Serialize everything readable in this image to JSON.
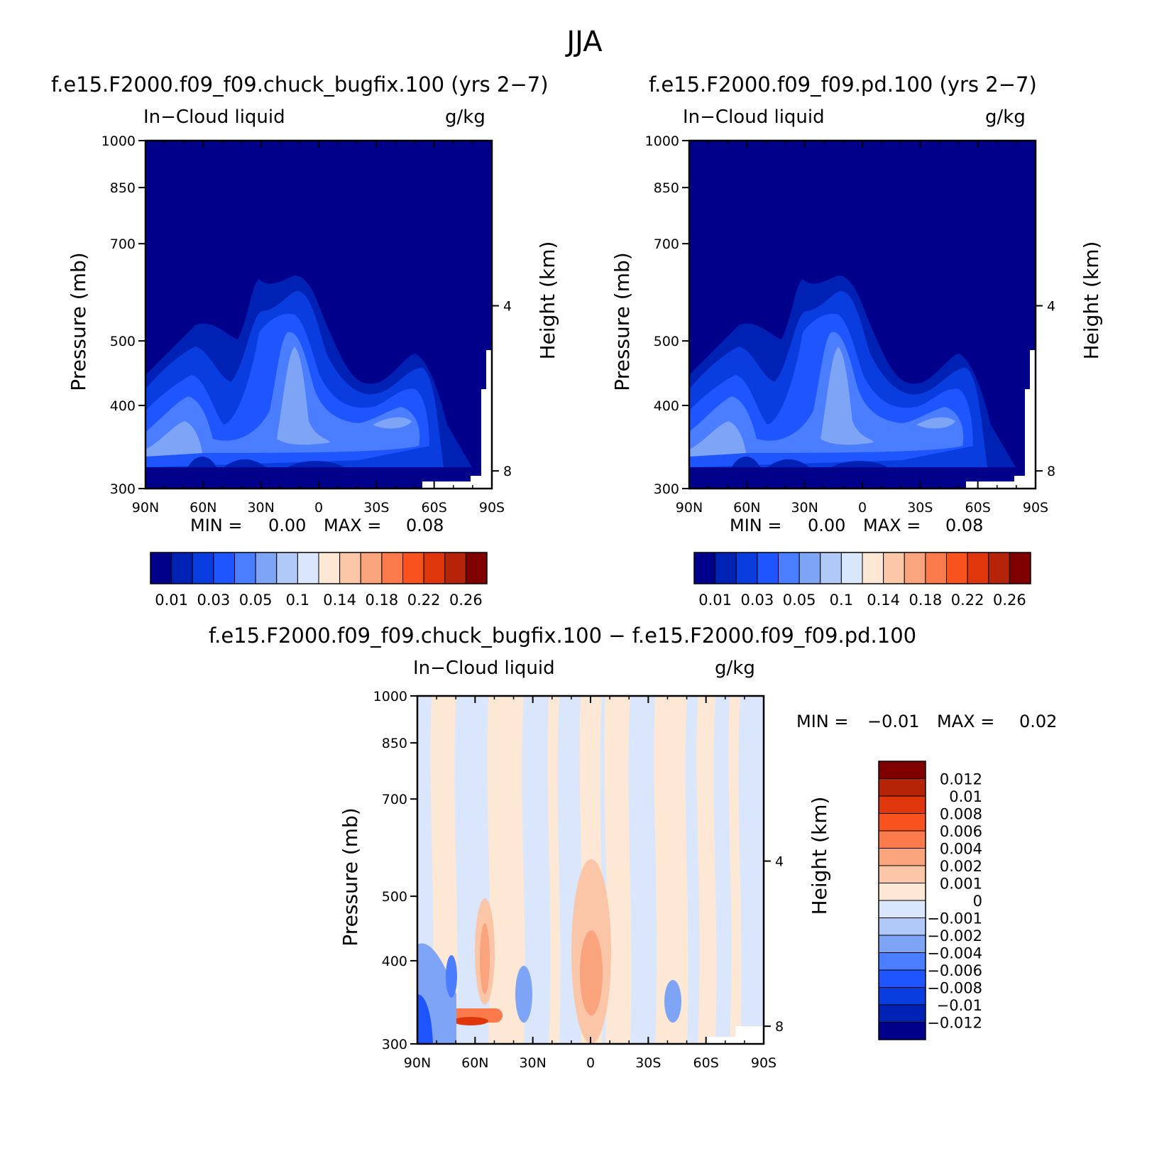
{
  "main_title": "JJA",
  "panels": [
    {
      "title": "f.e15.F2000.f09_f09.chuck_bugfix.100 (yrs 2−7)",
      "var_label": "In−Cloud liquid",
      "units": "g/kg",
      "min_label": "MIN =",
      "min_value": "0.00",
      "max_label": "MAX =",
      "max_value": "0.08"
    },
    {
      "title": "f.e15.F2000.f09_f09.pd.100 (yrs 2−7)",
      "var_label": "In−Cloud liquid",
      "units": "g/kg",
      "min_label": "MIN =",
      "min_value": "0.00",
      "max_label": "MAX =",
      "max_value": "0.08"
    },
    {
      "title": "f.e15.F2000.f09_f09.chuck_bugfix.100 − f.e15.F2000.f09_f09.pd.100",
      "var_label": "In−Cloud liquid",
      "units": "g/kg",
      "min_label": "MIN =",
      "min_value": "−0.01",
      "max_label": "MAX =",
      "max_value": "0.02"
    }
  ],
  "chart_data": [
    {
      "type": "heatmap",
      "title": "f.e15.F2000.f09_f09.chuck_bugfix.100 (yrs 2−7)",
      "xlabel": "",
      "ylabel": "Pressure (mb)",
      "y2label": "Height (km)",
      "x_ticks": [
        "90N",
        "60N",
        "30N",
        "0",
        "30S",
        "60S",
        "90S"
      ],
      "y_ticks": [
        "300",
        "400",
        "500",
        "700",
        "850",
        "1000"
      ],
      "y2_ticks": [
        "8",
        "4"
      ],
      "y_scale": "log",
      "levels": [
        "0.01",
        "0.03",
        "0.05",
        "0.1",
        "0.14",
        "0.18",
        "0.22",
        "0.26"
      ]
    },
    {
      "type": "heatmap",
      "title": "f.e15.F2000.f09_f09.pd.100 (yrs 2−7)",
      "xlabel": "",
      "ylabel": "Pressure (mb)",
      "y2label": "Height (km)",
      "x_ticks": [
        "90N",
        "60N",
        "30N",
        "0",
        "30S",
        "60S",
        "90S"
      ],
      "y_ticks": [
        "300",
        "400",
        "500",
        "700",
        "850",
        "1000"
      ],
      "y2_ticks": [
        "8",
        "4"
      ],
      "y_scale": "log",
      "levels": [
        "0.01",
        "0.03",
        "0.05",
        "0.1",
        "0.14",
        "0.18",
        "0.22",
        "0.26"
      ]
    },
    {
      "type": "heatmap",
      "title": "f.e15.F2000.f09_f09.chuck_bugfix.100 − f.e15.F2000.f09_f09.pd.100",
      "xlabel": "",
      "ylabel": "Pressure (mb)",
      "y2label": "Height (km)",
      "x_ticks": [
        "90N",
        "60N",
        "30N",
        "0",
        "30S",
        "60S",
        "90S"
      ],
      "y_ticks": [
        "300",
        "400",
        "500",
        "700",
        "850",
        "1000"
      ],
      "y2_ticks": [
        "8",
        "4"
      ],
      "y_scale": "log",
      "levels": [
        "0.012",
        "0.01",
        "0.008",
        "0.006",
        "0.004",
        "0.002",
        "0.001",
        "0",
        "−0.001",
        "−0.002",
        "−0.004",
        "−0.006",
        "−0.008",
        "−0.01",
        "−0.012"
      ]
    }
  ],
  "colors": {
    "seq_palette": [
      "#00008b",
      "#0022b4",
      "#0a3de0",
      "#1f55ff",
      "#4a7dff",
      "#7ea4f5",
      "#b1c9f7",
      "#d9e6fb",
      "#fde8d6",
      "#fbc6a8",
      "#f9a47c",
      "#fb7a4c",
      "#f8521f",
      "#e0360c",
      "#b52408",
      "#800000"
    ],
    "div_palette": [
      "#800000",
      "#b52408",
      "#e0360c",
      "#f8521f",
      "#fb7a4c",
      "#f9a47c",
      "#fbc6a8",
      "#fde8d6",
      "#d9e6fb",
      "#b1c9f7",
      "#7ea4f5",
      "#4a7dff",
      "#1f55ff",
      "#0a3de0",
      "#0022b4",
      "#00008b"
    ]
  }
}
